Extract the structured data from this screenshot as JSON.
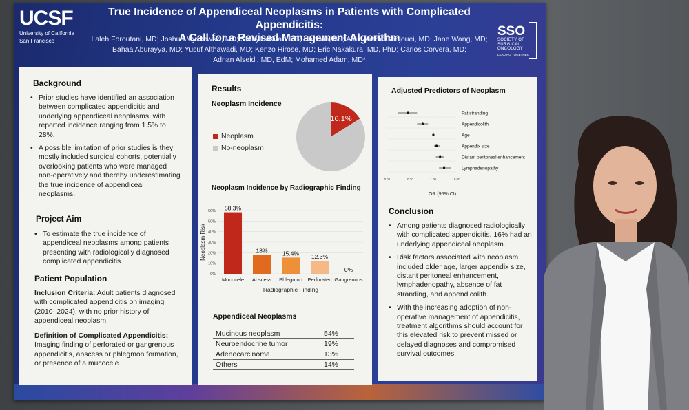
{
  "poster": {
    "logo_left": {
      "mark": "UCSF",
      "sub1": "University of California",
      "sub2": "San Francisco"
    },
    "logo_right": {
      "mark": "SSO",
      "sub1": "SOCIETY OF",
      "sub2": "SURGICAL",
      "sub3": "ONCOLOGY",
      "tag": "LEADING TOGETHER"
    },
    "title_line1": "True Incidence of Appendiceal Neoplasms in Patients with Complicated Appendicitis:",
    "title_line2": "A Call for a Revised Management Algorithm",
    "authors_line1": "Laleh Foroutani, MD; Joshua Myszewski, MD; Shreyas Kiran, BS; Han Yin, BS; Amir Ashraf Ganjouei, MD; Jane Wang, MD;",
    "authors_line2": "Bahaa Aburayya, MD; Yusuf Althawadi, MD; Kenzo Hirose, MD; Eric Nakakura, MD, PhD; Carlos Corvera, MD;",
    "authors_line3": "Adnan Alseidi, MD, EdM; Mohamed Adam, MD*"
  },
  "background": {
    "heading": "Background",
    "b1": "Prior studies have identified an association between complicated appendicitis and underlying appendiceal neoplasms, with reported incidence ranging from 1.5% to 28%.",
    "b2": "A possible limitation of prior studies is they mostly included surgical cohorts, potentially overlooking patients who were managed non-operatively and thereby underestimating the true incidence of appendiceal neoplasms."
  },
  "aim": {
    "heading": "Project Aim",
    "b1": "To estimate the true incidence of appendiceal neoplasms among patients presenting with radiologically diagnosed complicated appendicitis."
  },
  "population": {
    "heading": "Patient Population",
    "inc_label": "Inclusion Criteria:",
    "inc_text": " Adult patients diagnosed with complicated appendicitis on imaging (2010–2024), with no prior history of appendiceal neoplasm.",
    "def_label": "Definition of Complicated Appendicitis:",
    "def_text": "Imaging finding of perforated or gangrenous appendicitis, abscess or phlegmon formation, or presence of a mucocele."
  },
  "results": {
    "heading": "Results",
    "incidence_heading": "Neoplasm Incidence",
    "legend_neo": "Neoplasm",
    "legend_non": "No-neoplasm",
    "table_heading": "Appendiceal Neoplasms",
    "table": [
      {
        "name": "Mucinous neoplasm",
        "value": "54%"
      },
      {
        "name": "Neuroendocrine tumor",
        "value": "19%"
      },
      {
        "name": "Adenocarcinoma",
        "value": "13%"
      },
      {
        "name": "Others",
        "value": "14%"
      }
    ]
  },
  "colors": {
    "neoplasm": "#c0281c",
    "no_neoplasm": "#c9c9c9",
    "bar_light": "#e5731f",
    "bar_pale": "#f2b27a"
  },
  "chart_data": [
    {
      "type": "pie",
      "title": "Neoplasm Incidence",
      "slices": [
        {
          "name": "Neoplasm",
          "value": 16.1,
          "label": "16.1%"
        },
        {
          "name": "No-neoplasm",
          "value": 83.9,
          "label": ""
        }
      ]
    },
    {
      "type": "bar",
      "title": "Neoplasm Incidence by Radiographic Finding",
      "xlabel": "Radiographic Finding",
      "ylabel": "Neoplasm Risk",
      "categories": [
        "Mucocele",
        "Abscess",
        "Phlegmon",
        "Perforated",
        "Gangrenous"
      ],
      "values": [
        58.3,
        18,
        15.4,
        12.3,
        0
      ],
      "value_labels": [
        "58.3%",
        "18%",
        "15.4%",
        "12.3%",
        "0%"
      ],
      "yticks": [
        "0%",
        "10%",
        "20%",
        "30%",
        "40%",
        "50%",
        "60%"
      ],
      "ylim": [
        0,
        60
      ],
      "bar_colors": [
        "#c0281c",
        "#e06a1e",
        "#ee8f3a",
        "#f6b985",
        "#f6b985"
      ]
    },
    {
      "type": "scatter",
      "title": "Adjusted Predictors of Neoplasm",
      "xlabel": "OR (95% CI)",
      "xticks": [
        "0.01",
        "0.10",
        "1.00",
        "10.00"
      ],
      "xscale": "log",
      "rows": [
        {
          "label": "Fat stranding",
          "or": 0.08,
          "lo": 0.03,
          "hi": 0.2
        },
        {
          "label": "Appendicolith",
          "or": 0.35,
          "lo": 0.2,
          "hi": 0.6
        },
        {
          "label": "Age",
          "or": 1.02,
          "lo": 1.0,
          "hi": 1.04
        },
        {
          "label": "Appendix size",
          "or": 1.4,
          "lo": 1.1,
          "hi": 1.9
        },
        {
          "label": "Distant peritoneal enhancement",
          "or": 2.0,
          "lo": 1.3,
          "hi": 3.0
        },
        {
          "label": "Lymphadenopathy",
          "or": 3.0,
          "lo": 1.8,
          "hi": 6.0
        }
      ]
    }
  ],
  "conclusion": {
    "heading": "Conclusion",
    "b1": "Among patients diagnosed radiologically with complicated appendicitis, 16% had an underlying appendiceal neoplasm.",
    "b2": "Risk factors associated with neoplasm included older age, larger appendix size, distant peritoneal enhancement, lymphadenopathy, absence of fat stranding, and appendicolith.",
    "b3": "With the increasing adoption of non-operative management of appendicitis, treatment algorithms should account for this elevated risk to prevent missed or delayed diagnoses and compromised survival outcomes."
  }
}
